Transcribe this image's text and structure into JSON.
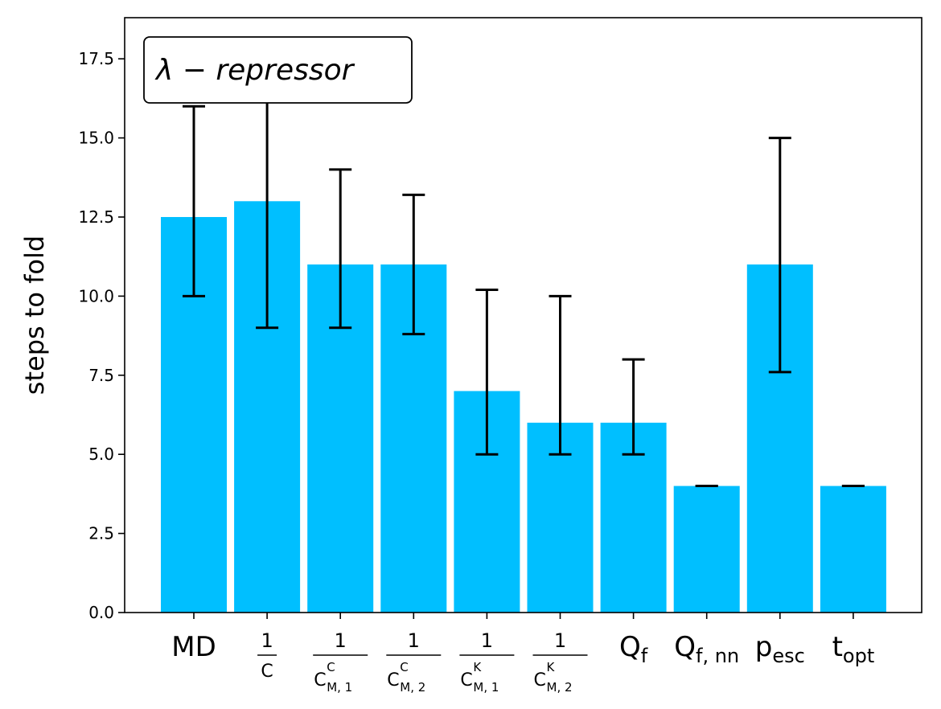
{
  "chart_data": {
    "type": "bar",
    "title": "",
    "xlabel": "",
    "ylabel": "steps to fold",
    "annotation": "λ − repressor",
    "ylim": [
      0,
      18.8
    ],
    "yticks": [
      "0.0",
      "2.5",
      "5.0",
      "7.5",
      "10.0",
      "12.5",
      "15.0",
      "17.5"
    ],
    "ytick_values": [
      0,
      2.5,
      5,
      7.5,
      10,
      12.5,
      15,
      17.5
    ],
    "grid": false,
    "bar_color": "#00bfff",
    "categories": [
      {
        "kind": "text",
        "main": "MD"
      },
      {
        "kind": "frac",
        "num": "1",
        "den": "C"
      },
      {
        "kind": "frac",
        "num": "1",
        "den": "C",
        "sup": "C",
        "sub": "M, 1"
      },
      {
        "kind": "frac",
        "num": "1",
        "den": "C",
        "sup": "C",
        "sub": "M, 2"
      },
      {
        "kind": "frac",
        "num": "1",
        "den": "C",
        "sup": "K",
        "sub": "M, 1"
      },
      {
        "kind": "frac",
        "num": "1",
        "den": "C",
        "sup": "K",
        "sub": "M, 2"
      },
      {
        "kind": "sub",
        "main": "Q",
        "sub": "f"
      },
      {
        "kind": "sub",
        "main": "Q",
        "sub": "f, nn"
      },
      {
        "kind": "sub",
        "main": "p",
        "sub": "esc"
      },
      {
        "kind": "sub",
        "main": "t",
        "sub": "opt"
      }
    ],
    "values": [
      12.5,
      13,
      11,
      11,
      7,
      6,
      6,
      4,
      11,
      4
    ],
    "error_low": [
      10,
      9,
      9,
      8.8,
      5,
      5,
      5,
      4,
      7.6,
      4
    ],
    "error_high": [
      16,
      16.3,
      14,
      13.2,
      10.2,
      10,
      8,
      4,
      15,
      4
    ]
  }
}
